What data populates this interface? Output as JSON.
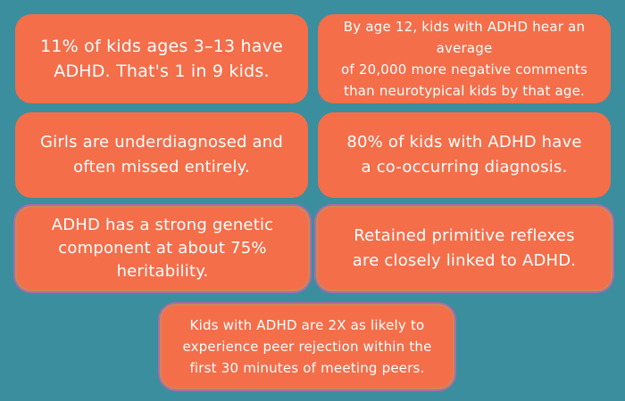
{
  "colors": {
    "background": "#3b8e9e",
    "card": "#f46e4a",
    "text": "#ffffff"
  },
  "facts": [
    {
      "text": "11% of kids ages 3–13 have\nADHD. That's 1 in 9 kids."
    },
    {
      "text": "By age 12, kids with ADHD hear an average\nof 20,000 more negative comments\nthan neurotypical kids by that age."
    },
    {
      "text": "Girls are underdiagnosed and\noften missed entirely."
    },
    {
      "text": "80% of kids with ADHD have\na co-occurring diagnosis."
    },
    {
      "text": "ADHD has a strong genetic\ncomponent at about 75%\nheritability."
    },
    {
      "text": "Retained primitive reflexes\nare closely linked to ADHD."
    },
    {
      "text": "Kids with ADHD are 2X as likely to\nexperience peer rejection within the\nfirst 30 minutes of meeting peers."
    }
  ]
}
